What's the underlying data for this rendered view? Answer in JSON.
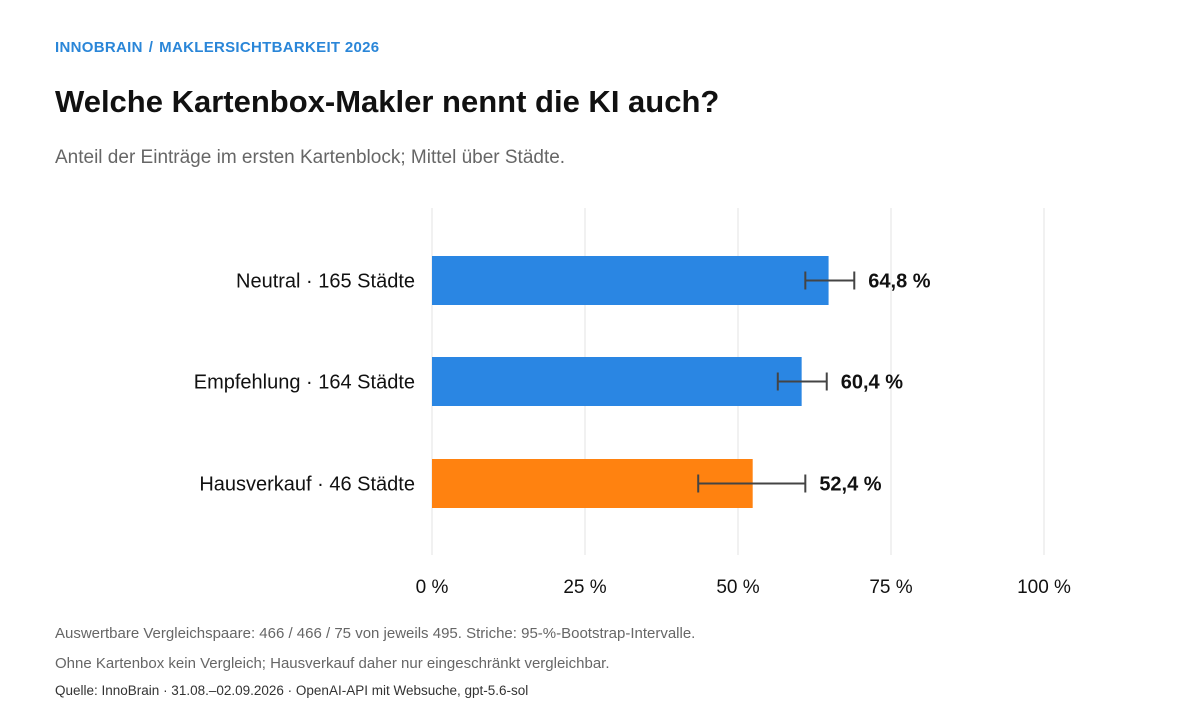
{
  "header": {
    "kicker_brand": "INNOBRAIN",
    "kicker_separator": "/",
    "kicker_section": "MAKLERSICHTBARKEIT 2026",
    "accent_color": "#2a86d8"
  },
  "chart_data": {
    "type": "bar",
    "orientation": "horizontal",
    "title": "Welche Kartenbox-Makler nennt die KI auch?",
    "subtitle": "Anteil der Einträge im ersten Kartenblock; Mittel über Städte.",
    "categories": [
      "Neutral · 165 Städte",
      "Empfehlung · 164 Städte",
      "Hausverkauf · 46 Städte"
    ],
    "values": [
      64.8,
      60.4,
      52.4
    ],
    "value_labels": [
      "64,8 %",
      "60,4 %",
      "52,4 %"
    ],
    "error_bars": [
      {
        "low": 61.0,
        "high": 69.0
      },
      {
        "low": 56.5,
        "high": 64.5
      },
      {
        "low": 43.5,
        "high": 61.0
      }
    ],
    "colors": [
      "#2a86e3",
      "#2a86e3",
      "#ff8210"
    ],
    "x_ticks": [
      0,
      25,
      50,
      75,
      100
    ],
    "x_tick_labels": [
      "0 %",
      "25 %",
      "50 %",
      "75 %",
      "100 %"
    ],
    "xlim": [
      0,
      100
    ],
    "grid": true,
    "legend": "none"
  },
  "notes": {
    "line1": "Auswertbare Vergleichspaare: 466 / 466 / 75 von jeweils 495. Striche: 95-%-Bootstrap-Intervalle.",
    "line2": "Ohne Kartenbox kein Vergleich; Hausverkauf daher nur eingeschränkt vergleichbar.",
    "source": "Quelle: InnoBrain · 31.08.–02.09.2026 · OpenAI-API mit Websuche, gpt-5.6-sol"
  }
}
